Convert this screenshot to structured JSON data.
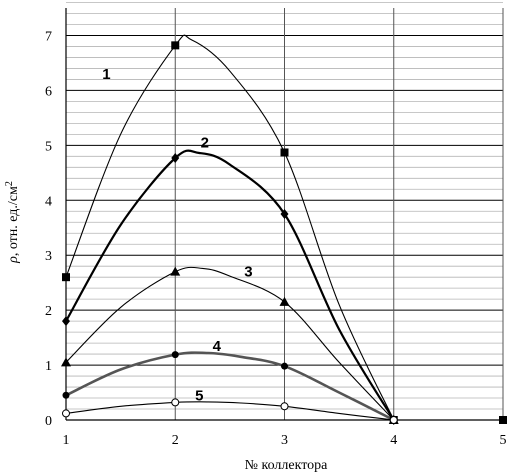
{
  "chart_data": {
    "type": "line",
    "title": "",
    "xlabel": "№ коллектора",
    "ylabel_prefix": "ρ",
    "ylabel_main": ", отн. ед./см",
    "ylabel_sup": "2",
    "x": [
      1,
      2,
      3,
      4,
      5
    ],
    "x_ticks": [
      "1",
      "2",
      "3",
      "4",
      "5"
    ],
    "y_ticks": [
      "0",
      "1",
      "2",
      "3",
      "4",
      "5",
      "6",
      "7"
    ],
    "xlim": [
      1,
      5
    ],
    "ylim": [
      0,
      7.5
    ],
    "grid": "horizontal minor 0.2, major 1; vertical at each collector",
    "series": [
      {
        "name": "1",
        "marker": "square",
        "points": [
          [
            1,
            2.6
          ],
          [
            2,
            6.82
          ],
          [
            3,
            4.87
          ],
          [
            4,
            0
          ],
          [
            5,
            0
          ]
        ],
        "curve": [
          [
            1,
            2.6
          ],
          [
            1.5,
            5.2
          ],
          [
            2,
            6.82
          ],
          [
            2.15,
            6.92
          ],
          [
            2.5,
            6.35
          ],
          [
            3,
            4.87
          ],
          [
            3.5,
            2.1
          ],
          [
            4,
            0
          ]
        ]
      },
      {
        "name": "2",
        "marker": "diamond",
        "points": [
          [
            1,
            1.8
          ],
          [
            2,
            4.77
          ],
          [
            3,
            3.75
          ],
          [
            4,
            0
          ]
        ],
        "curve": [
          [
            1,
            1.8
          ],
          [
            1.5,
            3.55
          ],
          [
            2,
            4.77
          ],
          [
            2.22,
            4.86
          ],
          [
            2.5,
            4.65
          ],
          [
            3,
            3.75
          ],
          [
            3.5,
            1.65
          ],
          [
            4,
            0
          ]
        ]
      },
      {
        "name": "3",
        "marker": "triangle",
        "points": [
          [
            1,
            1.05
          ],
          [
            2,
            2.7
          ],
          [
            3,
            2.15
          ],
          [
            4,
            0
          ]
        ],
        "curve": [
          [
            1,
            1.05
          ],
          [
            1.5,
            2.05
          ],
          [
            2,
            2.7
          ],
          [
            2.25,
            2.76
          ],
          [
            2.5,
            2.62
          ],
          [
            3,
            2.15
          ],
          [
            3.5,
            1.05
          ],
          [
            4,
            0
          ]
        ]
      },
      {
        "name": "4",
        "marker": "circle",
        "points": [
          [
            1,
            0.45
          ],
          [
            2,
            1.19
          ],
          [
            3,
            0.98
          ],
          [
            4,
            0
          ]
        ],
        "curve": [
          [
            1,
            0.45
          ],
          [
            1.5,
            0.92
          ],
          [
            2,
            1.19
          ],
          [
            2.3,
            1.22
          ],
          [
            2.6,
            1.15
          ],
          [
            3,
            0.98
          ],
          [
            3.5,
            0.5
          ],
          [
            4,
            0
          ]
        ]
      },
      {
        "name": "5",
        "marker": "open-circle",
        "points": [
          [
            1,
            0.12
          ],
          [
            2,
            0.32
          ],
          [
            3,
            0.25
          ],
          [
            4,
            0
          ]
        ],
        "curve": [
          [
            1,
            0.12
          ],
          [
            1.5,
            0.25
          ],
          [
            2,
            0.32
          ],
          [
            2.3,
            0.33
          ],
          [
            2.6,
            0.31
          ],
          [
            3,
            0.25
          ],
          [
            3.5,
            0.12
          ],
          [
            4,
            0
          ]
        ]
      }
    ],
    "series_labels": [
      {
        "text": "1",
        "x": 1.37,
        "y": 6.3
      },
      {
        "text": "2",
        "x": 2.27,
        "y": 5.05
      },
      {
        "text": "3",
        "x": 2.67,
        "y": 2.7
      },
      {
        "text": "4",
        "x": 2.38,
        "y": 1.35
      },
      {
        "text": "5",
        "x": 2.22,
        "y": 0.45
      }
    ]
  }
}
